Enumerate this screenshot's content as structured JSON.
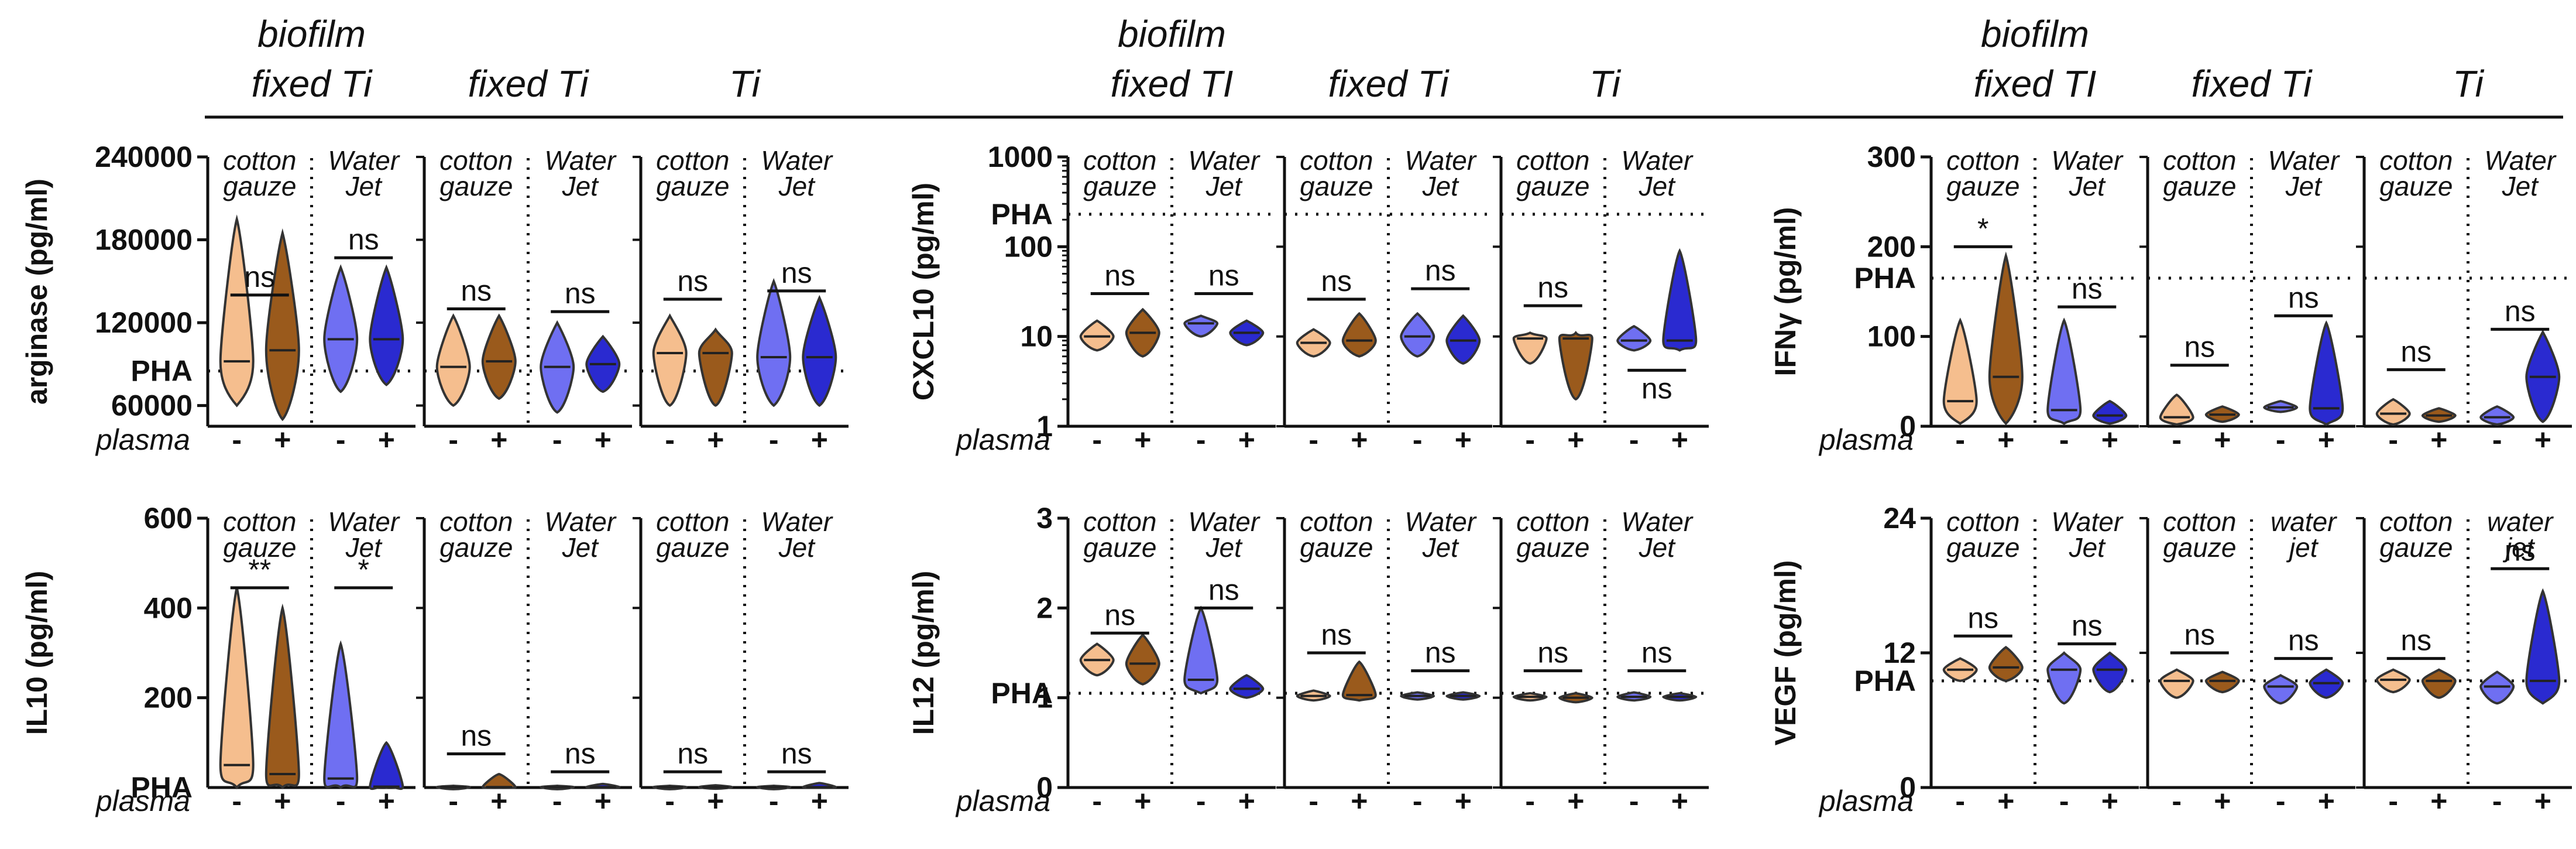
{
  "figure": {
    "group_headers": [
      {
        "parts": [
          {
            "lines": [
              "biofilm",
              "fixed Ti"
            ]
          },
          {
            "lines": [
              "fixed Ti"
            ]
          },
          {
            "lines": [
              "Ti"
            ]
          }
        ]
      },
      {
        "parts": [
          {
            "lines": [
              "biofilm",
              "fixed TI"
            ]
          },
          {
            "lines": [
              "fixed Ti"
            ]
          },
          {
            "lines": [
              "Ti"
            ]
          }
        ]
      },
      {
        "parts": [
          {
            "lines": [
              "biofilm",
              "fixed TI"
            ]
          },
          {
            "lines": [
              "fixed Ti"
            ]
          },
          {
            "lines": [
              "Ti"
            ]
          }
        ]
      }
    ],
    "plasma_label": "plasma",
    "signs": [
      "-",
      "+",
      "-",
      "+"
    ],
    "colors": {
      "cotton_minus": "#f5be8e",
      "cotton_plus": "#9a5a1c",
      "jet_minus": "#6f6ff2",
      "jet_plus": "#2a2ad0",
      "ink": "#111111"
    }
  },
  "chart_data": [
    {
      "type": "violin",
      "ylabel": "arginase (pg/ml)",
      "ylim": [
        45000,
        240000
      ],
      "yticks": [
        {
          "v": 240000,
          "t": "240000"
        },
        {
          "v": 180000,
          "t": "180000"
        },
        {
          "v": 120000,
          "t": "120000"
        },
        {
          "v": 60000,
          "t": "60000"
        }
      ],
      "pha": {
        "v": 85000,
        "t": "PHA"
      },
      "panels": [
        {
          "headers": [
            [
              "cotton",
              "gauze"
            ],
            [
              "Water",
              "Jet"
            ]
          ],
          "violins": [
            {
              "lo": 60000,
              "hi": 195000,
              "med": 92000
            },
            {
              "lo": 50000,
              "hi": 185000,
              "med": 100000
            },
            {
              "lo": 70000,
              "hi": 160000,
              "med": 108000
            },
            {
              "lo": 75000,
              "hi": 160000,
              "med": 108000
            }
          ],
          "stats": [
            {
              "t": "ns",
              "y": 140000
            },
            {
              "t": "ns",
              "y": 167000
            }
          ]
        },
        {
          "headers": [
            [
              "cotton",
              "gauze"
            ],
            [
              "Water",
              "Jet"
            ]
          ],
          "violins": [
            {
              "lo": 60000,
              "hi": 125000,
              "med": 88000
            },
            {
              "lo": 65000,
              "hi": 125000,
              "med": 92000
            },
            {
              "lo": 55000,
              "hi": 120000,
              "med": 88000
            },
            {
              "lo": 70000,
              "hi": 110000,
              "med": 90000
            }
          ],
          "stats": [
            {
              "t": "ns",
              "y": 130000
            },
            {
              "t": "ns",
              "y": 128000
            }
          ]
        },
        {
          "headers": [
            [
              "cotton",
              "gauze"
            ],
            [
              "Water",
              "Jet"
            ]
          ],
          "violins": [
            {
              "lo": 60000,
              "hi": 125000,
              "med": 98000
            },
            {
              "lo": 60000,
              "hi": 115000,
              "med": 98000
            },
            {
              "lo": 60000,
              "hi": 150000,
              "med": 95000
            },
            {
              "lo": 60000,
              "hi": 138000,
              "med": 95000
            }
          ],
          "stats": [
            {
              "t": "ns",
              "y": 137000
            },
            {
              "t": "ns",
              "y": 143000
            }
          ]
        }
      ]
    },
    {
      "type": "violin",
      "ylabel": "CXCL10 (pg/ml)",
      "scale": "log",
      "ylim": [
        1,
        1000
      ],
      "yticks": [
        {
          "v": 1000,
          "t": "1000"
        },
        {
          "v": 100,
          "t": "100"
        },
        {
          "v": 10,
          "t": "10"
        },
        {
          "v": 1,
          "t": "1"
        }
      ],
      "pha": {
        "v": 230,
        "t": "PHA"
      },
      "panels": [
        {
          "headers": [
            [
              "cotton",
              "gauze"
            ],
            [
              "Water",
              "Jet"
            ]
          ],
          "violins": [
            {
              "lo": 7,
              "hi": 15,
              "med": 10
            },
            {
              "lo": 6,
              "hi": 20,
              "med": 11
            },
            {
              "lo": 10,
              "hi": 17,
              "med": 14
            },
            {
              "lo": 8,
              "hi": 15,
              "med": 11
            }
          ],
          "stats": [
            {
              "t": "ns",
              "y": 30
            },
            {
              "t": "ns",
              "y": 30
            }
          ]
        },
        {
          "headers": [
            [
              "cotton",
              "gauze"
            ],
            [
              "Water",
              "Jet"
            ]
          ],
          "violins": [
            {
              "lo": 6,
              "hi": 12,
              "med": 8.5
            },
            {
              "lo": 6,
              "hi": 18,
              "med": 9
            },
            {
              "lo": 6,
              "hi": 18,
              "med": 10
            },
            {
              "lo": 5,
              "hi": 17,
              "med": 9
            }
          ],
          "stats": [
            {
              "t": "ns",
              "y": 26
            },
            {
              "t": "ns",
              "y": 34
            }
          ]
        },
        {
          "headers": [
            [
              "cotton",
              "gauze"
            ],
            [
              "Water",
              "Jet"
            ]
          ],
          "violins": [
            {
              "lo": 5,
              "hi": 11,
              "med": 9.5
            },
            {
              "lo": 2,
              "hi": 11,
              "med": 9.5
            },
            {
              "lo": 7,
              "hi": 13,
              "med": 9
            },
            {
              "lo": 7,
              "hi": 90,
              "med": 9
            }
          ],
          "stats": [
            {
              "t": "ns",
              "y": 22
            },
            {
              "t": "ns",
              "y": 4.2,
              "below": true
            }
          ]
        }
      ]
    },
    {
      "type": "violin",
      "ylabel": "IFNγ (pg/ml)",
      "ylim": [
        0,
        300
      ],
      "yticks": [
        {
          "v": 300,
          "t": "300"
        },
        {
          "v": 200,
          "t": "200"
        },
        {
          "v": 100,
          "t": "100"
        },
        {
          "v": 0,
          "t": "0"
        }
      ],
      "pha": {
        "v": 165,
        "t": "PHA"
      },
      "panels": [
        {
          "headers": [
            [
              "cotton",
              "gauze"
            ],
            [
              "Water",
              "Jet"
            ]
          ],
          "violins": [
            {
              "lo": 3,
              "hi": 118,
              "med": 28
            },
            {
              "lo": 3,
              "hi": 190,
              "med": 55
            },
            {
              "lo": 3,
              "hi": 118,
              "med": 18
            },
            {
              "lo": 3,
              "hi": 28,
              "med": 12
            }
          ],
          "stats": [
            {
              "t": "*",
              "y": 200
            },
            {
              "t": "ns",
              "y": 133
            }
          ]
        },
        {
          "headers": [
            [
              "cotton",
              "gauze"
            ],
            [
              "Water",
              "Jet"
            ]
          ],
          "violins": [
            {
              "lo": 2,
              "hi": 35,
              "med": 10
            },
            {
              "lo": 5,
              "hi": 22,
              "med": 13
            },
            {
              "lo": 16,
              "hi": 28,
              "med": 21
            },
            {
              "lo": 2,
              "hi": 115,
              "med": 20
            }
          ],
          "stats": [
            {
              "t": "ns",
              "y": 68
            },
            {
              "t": "ns",
              "y": 123
            }
          ]
        },
        {
          "headers": [
            [
              "cotton",
              "gauze"
            ],
            [
              "Water",
              "Jet"
            ]
          ],
          "violins": [
            {
              "lo": 2,
              "hi": 30,
              "med": 14
            },
            {
              "lo": 5,
              "hi": 20,
              "med": 12
            },
            {
              "lo": 2,
              "hi": 22,
              "med": 10
            },
            {
              "lo": 5,
              "hi": 105,
              "med": 55
            }
          ],
          "stats": [
            {
              "t": "ns",
              "y": 63
            },
            {
              "t": "ns",
              "y": 108
            }
          ]
        }
      ]
    },
    {
      "type": "violin",
      "ylabel": "IL10 (pg/ml)",
      "ylim": [
        0,
        600
      ],
      "yticks": [
        {
          "v": 600,
          "t": "600"
        },
        {
          "v": 400,
          "t": "400"
        },
        {
          "v": 200,
          "t": "200"
        }
      ],
      "pha": {
        "v": 0,
        "t": "PHA"
      },
      "panels": [
        {
          "headers": [
            [
              "cotton",
              "gauze"
            ],
            [
              "Water",
              "Jet"
            ]
          ],
          "violins": [
            {
              "lo": 0,
              "hi": 445,
              "med": 50
            },
            {
              "lo": 0,
              "hi": 400,
              "med": 30
            },
            {
              "lo": 0,
              "hi": 320,
              "med": 20
            },
            {
              "lo": 0,
              "hi": 100,
              "med": 2
            }
          ],
          "stats": [
            {
              "t": "**",
              "y": 445
            },
            {
              "t": "*",
              "y": 445
            }
          ]
        },
        {
          "headers": [
            [
              "cotton",
              "gauze"
            ],
            [
              "Water",
              "Jet"
            ]
          ],
          "violins": [
            {
              "lo": 0,
              "hi": 4,
              "med": 1
            },
            {
              "lo": 0,
              "hi": 30,
              "med": 1
            },
            {
              "lo": 0,
              "hi": 4,
              "med": 1
            },
            {
              "lo": 0,
              "hi": 8,
              "med": 1
            }
          ],
          "stats": [
            {
              "t": "ns",
              "y": 75
            },
            {
              "t": "ns",
              "y": 35
            }
          ]
        },
        {
          "headers": [
            [
              "cotton",
              "gauze"
            ],
            [
              "Water",
              "Jet"
            ]
          ],
          "violins": [
            {
              "lo": 0,
              "hi": 4,
              "med": 1
            },
            {
              "lo": 0,
              "hi": 5,
              "med": 1
            },
            {
              "lo": 0,
              "hi": 4,
              "med": 1
            },
            {
              "lo": 0,
              "hi": 10,
              "med": 1
            }
          ],
          "stats": [
            {
              "t": "ns",
              "y": 35
            },
            {
              "t": "ns",
              "y": 35
            }
          ]
        }
      ]
    },
    {
      "type": "violin",
      "ylabel": "IL12 (pg/ml)",
      "ylim": [
        0,
        3
      ],
      "yticks": [
        {
          "v": 3,
          "t": "3"
        },
        {
          "v": 2,
          "t": "2"
        },
        {
          "v": 1,
          "t": "1"
        },
        {
          "v": 0,
          "t": "0"
        }
      ],
      "pha": {
        "v": 1.05,
        "t": "PHA"
      },
      "panels": [
        {
          "headers": [
            [
              "cotton",
              "gauze"
            ],
            [
              "Water",
              "Jet"
            ]
          ],
          "violins": [
            {
              "lo": 1.25,
              "hi": 1.6,
              "med": 1.42
            },
            {
              "lo": 1.15,
              "hi": 1.7,
              "med": 1.38
            },
            {
              "lo": 1.05,
              "hi": 2.0,
              "med": 1.2
            },
            {
              "lo": 1.0,
              "hi": 1.25,
              "med": 1.1
            }
          ],
          "stats": [
            {
              "t": "ns",
              "y": 1.72
            },
            {
              "t": "ns",
              "y": 2.0
            }
          ]
        },
        {
          "headers": [
            [
              "cotton",
              "gauze"
            ],
            [
              "Water",
              "Jet"
            ]
          ],
          "violins": [
            {
              "lo": 0.97,
              "hi": 1.08,
              "med": 1.02
            },
            {
              "lo": 0.97,
              "hi": 1.4,
              "med": 1.03
            },
            {
              "lo": 0.98,
              "hi": 1.06,
              "med": 1.02
            },
            {
              "lo": 0.98,
              "hi": 1.06,
              "med": 1.02
            }
          ],
          "stats": [
            {
              "t": "ns",
              "y": 1.5
            },
            {
              "t": "ns",
              "y": 1.3
            }
          ]
        },
        {
          "headers": [
            [
              "cotton",
              "gauze"
            ],
            [
              "Water",
              "Jet"
            ]
          ],
          "violins": [
            {
              "lo": 0.97,
              "hi": 1.05,
              "med": 1.01
            },
            {
              "lo": 0.95,
              "hi": 1.05,
              "med": 1.0
            },
            {
              "lo": 0.97,
              "hi": 1.06,
              "med": 1.01
            },
            {
              "lo": 0.97,
              "hi": 1.05,
              "med": 1.01
            }
          ],
          "stats": [
            {
              "t": "ns",
              "y": 1.3
            },
            {
              "t": "ns",
              "y": 1.3
            }
          ]
        }
      ]
    },
    {
      "type": "violin",
      "ylabel": "VEGF (pg/ml)",
      "ylim": [
        0,
        24
      ],
      "yticks": [
        {
          "v": 24,
          "t": "24"
        },
        {
          "v": 12,
          "t": "12"
        },
        {
          "v": 0,
          "t": "0"
        }
      ],
      "pha": {
        "v": 9.5,
        "t": "PHA"
      },
      "panels": [
        {
          "headers": [
            [
              "cotton",
              "gauze"
            ],
            [
              "Water",
              "Jet"
            ]
          ],
          "violins": [
            {
              "lo": 9.5,
              "hi": 11.5,
              "med": 10.5
            },
            {
              "lo": 9.5,
              "hi": 12.5,
              "med": 10.7
            },
            {
              "lo": 7.5,
              "hi": 12,
              "med": 10.5
            },
            {
              "lo": 8.5,
              "hi": 12,
              "med": 10.5
            }
          ],
          "stats": [
            {
              "t": "ns",
              "y": 13.5
            },
            {
              "t": "ns",
              "y": 12.8
            }
          ]
        },
        {
          "headers": [
            [
              "cotton",
              "gauze"
            ],
            [
              "water",
              "jet"
            ]
          ],
          "violins": [
            {
              "lo": 8,
              "hi": 10.5,
              "med": 9.5
            },
            {
              "lo": 8.5,
              "hi": 10.3,
              "med": 9.5
            },
            {
              "lo": 7.5,
              "hi": 10,
              "med": 9
            },
            {
              "lo": 8,
              "hi": 10.5,
              "med": 9.3
            }
          ],
          "stats": [
            {
              "t": "ns",
              "y": 12
            },
            {
              "t": "ns",
              "y": 11.5
            }
          ]
        },
        {
          "headers": [
            [
              "cotton",
              "gauze"
            ],
            [
              "water",
              "jet"
            ]
          ],
          "violins": [
            {
              "lo": 8.5,
              "hi": 10.5,
              "med": 9.6
            },
            {
              "lo": 8,
              "hi": 10.5,
              "med": 9.5
            },
            {
              "lo": 7.5,
              "hi": 10.3,
              "med": 9
            },
            {
              "lo": 7.5,
              "hi": 17.5,
              "med": 9.5
            }
          ],
          "stats": [
            {
              "t": "ns",
              "y": 11.5
            },
            {
              "t": "ns",
              "y": 19.5
            }
          ]
        }
      ]
    }
  ]
}
